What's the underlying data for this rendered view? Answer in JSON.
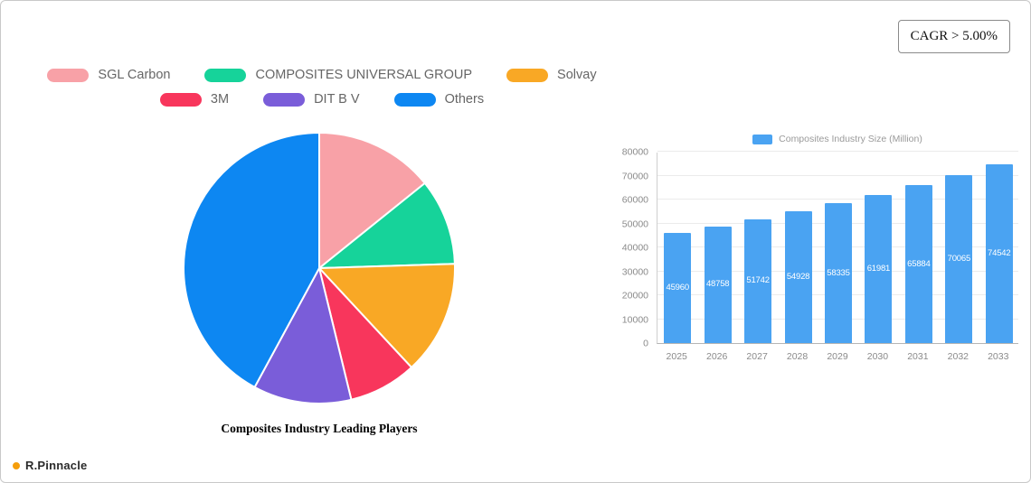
{
  "cagr_badge": "CAGR > 5.00%",
  "brand": {
    "name": "R.Pinnacle",
    "icon": "pinnacle-logo-icon",
    "icon_color": "#F59E0B"
  },
  "chart_data": [
    {
      "type": "pie",
      "title": "Composites Industry Leading Players",
      "labels": [
        "SGL Carbon",
        "COMPOSITES UNIVERSAL GROUP",
        "Solvay",
        "3M",
        "DIT B V",
        "Others"
      ],
      "values": [
        14.2,
        10.3,
        13.6,
        8.1,
        11.7,
        42.1
      ],
      "colors": [
        "#F8A1A7",
        "#16D39A",
        "#F9A825",
        "#F8365C",
        "#7A5DD9",
        "#0D87F2"
      ],
      "legend_position": "top",
      "legend_rows": [
        [
          0,
          1,
          2
        ],
        [
          3,
          4,
          5
        ]
      ],
      "units": "percent-estimated"
    },
    {
      "type": "bar",
      "legend": "Composites Industry Size (Million)",
      "categories": [
        "2025",
        "2026",
        "2027",
        "2028",
        "2029",
        "2030",
        "2031",
        "2032",
        "2033"
      ],
      "values": [
        45960,
        48758,
        51742,
        54928,
        58335,
        61981,
        65884,
        70065,
        74542
      ],
      "bar_color": "#4AA3F2",
      "value_label_color": "#ffffff",
      "xlabel": "",
      "ylabel": "",
      "ylim": [
        0,
        80000
      ],
      "yticks": [
        0,
        10000,
        20000,
        30000,
        40000,
        50000,
        60000,
        70000,
        80000
      ],
      "grid": true,
      "legend_position": "top"
    }
  ]
}
